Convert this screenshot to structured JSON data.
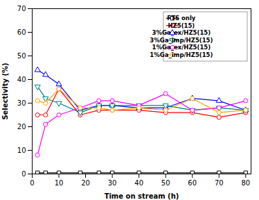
{
  "chart_data": {
    "type": "line",
    "xlabel": "Time on stream (h)",
    "ylabel": "Selectivity (%)",
    "x": [
      2,
      5,
      10,
      18,
      25,
      30,
      40,
      50,
      60,
      70,
      80
    ],
    "series": [
      {
        "name": "FTS only",
        "color": "#000000",
        "marker": "square",
        "line_style": "solid",
        "values": [
          0.5,
          0.5,
          0.5,
          0.5,
          0.5,
          0.5,
          0.5,
          0.5,
          0.5,
          0.5,
          0.5
        ]
      },
      {
        "name": "HZ5(15)",
        "color": "#ff0000",
        "marker": "circle",
        "line_style": "solid",
        "values": [
          25,
          25,
          36,
          25,
          27,
          27,
          27,
          26,
          26,
          24,
          26
        ]
      },
      {
        "name": "3%Ga_ex/HZ5(15)",
        "color": "#0000ff",
        "marker": "triangle-up",
        "line_style": "solid",
        "values": [
          44,
          42,
          38,
          27,
          29,
          29,
          28,
          28,
          32,
          31,
          27
        ]
      },
      {
        "name": "3%Ga_imp/HZ5(15)",
        "color": "#008080",
        "marker": "triangle-down",
        "line_style": "solid",
        "values": [
          37,
          32,
          30,
          26,
          29,
          29,
          29,
          29,
          27,
          28,
          27
        ]
      },
      {
        "name": "1%Ga_ex/HZ5(15)",
        "color": "#ff00ff",
        "marker": "circle",
        "line_style": "solid",
        "values": [
          8,
          21,
          25,
          28,
          31,
          31,
          29,
          34,
          27,
          28,
          31
        ]
      },
      {
        "name": "1%Ga_imp/HZ5(15)",
        "color": "#ffa500",
        "marker": "circle",
        "line_style": "solid",
        "values": [
          31,
          30,
          36,
          28,
          28,
          27,
          28,
          27,
          32,
          26,
          27
        ]
      }
    ],
    "xlim": [
      0,
      82
    ],
    "ylim": [
      0,
      70
    ],
    "xticks": [
      0,
      10,
      20,
      30,
      40,
      50,
      60,
      70,
      80
    ],
    "yticks": [
      0,
      10,
      20,
      30,
      40,
      50,
      60,
      70
    ],
    "grid": false,
    "legend": "upper right"
  }
}
